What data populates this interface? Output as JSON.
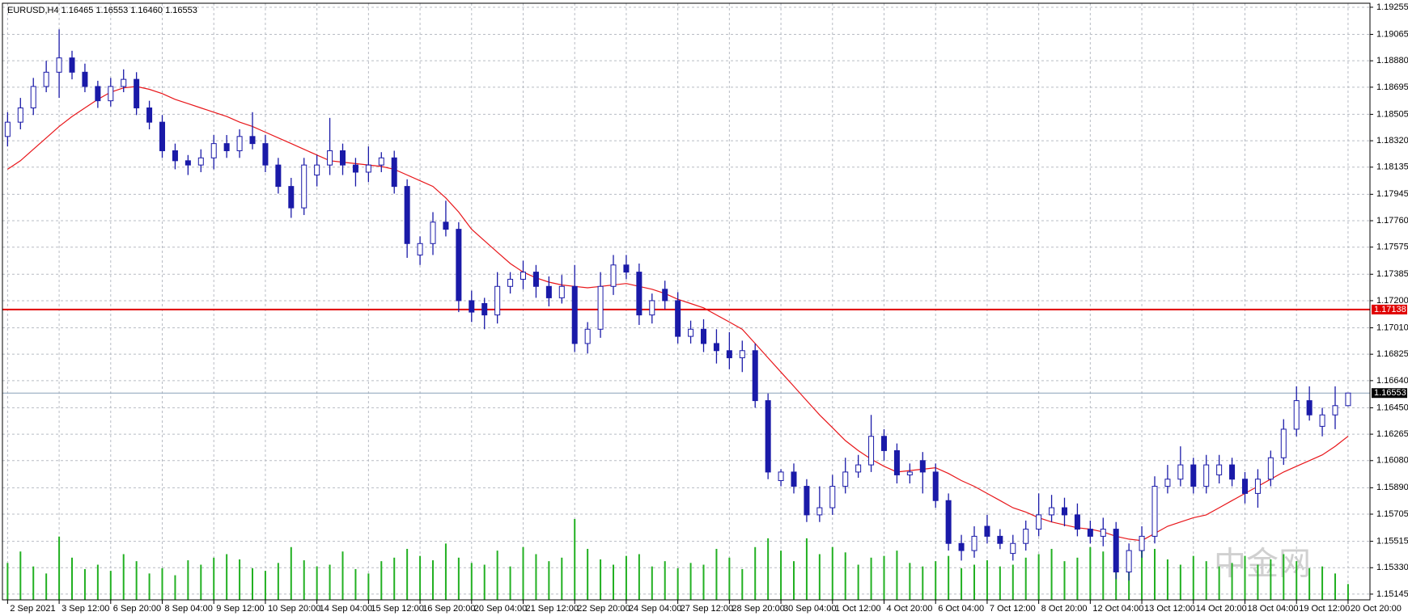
{
  "chart_data": {
    "type": "candlestick",
    "title": "EURUSD,H4  1.16465 1.16553 1.16460 1.16553",
    "watermark": "中金网",
    "color": "#1a1aa8",
    "up_fill": "#ffffff",
    "grid": true,
    "xlim": [
      -0.4,
      105.7
    ],
    "ylim": [
      1.15105,
      1.19283
    ],
    "yticks": [
      1.19255,
      1.19065,
      {
        "value": 1.1888,
        "label": "1.18880"
      },
      1.18695,
      1.18505,
      {
        "value": 1.1832,
        "label": "1.18320"
      },
      1.18135,
      1.17945,
      {
        "value": 1.1776,
        "label": "1.17760"
      },
      1.17575,
      1.17385,
      {
        "value": 1.172,
        "label": "1.17200"
      },
      {
        "value": 1.1701,
        "label": "1.17010"
      },
      1.16825,
      {
        "value": 1.1664,
        "label": "1.16640"
      },
      {
        "value": 1.1645,
        "label": "1.16450"
      },
      1.16265,
      {
        "value": 1.1608,
        "label": "1.16080"
      },
      {
        "value": 1.1589,
        "label": "1.15890"
      },
      1.15705,
      1.15515,
      {
        "value": 1.1533,
        "label": "1.15330"
      },
      1.15145
    ],
    "xticks": [
      {
        "value": 0,
        "label": "2 Sep 2021"
      },
      {
        "value": 4,
        "label": "3 Sep 12:00"
      },
      {
        "value": 8,
        "label": "6 Sep 20:00"
      },
      {
        "value": 12,
        "label": "8 Sep 04:00"
      },
      {
        "value": 16,
        "label": "9 Sep 12:00"
      },
      {
        "value": 20,
        "label": "10 Sep 20:00"
      },
      {
        "value": 24,
        "label": "14 Sep 04:00"
      },
      {
        "value": 28,
        "label": "15 Sep 12:00"
      },
      {
        "value": 32,
        "label": "16 Sep 20:00"
      },
      {
        "value": 36,
        "label": "20 Sep 04:00"
      },
      {
        "value": 40,
        "label": "21 Sep 12:00"
      },
      {
        "value": 44,
        "label": "22 Sep 20:00"
      },
      {
        "value": 48,
        "label": "24 Sep 04:00"
      },
      {
        "value": 52,
        "label": "27 Sep 12:00"
      },
      {
        "value": 56,
        "label": "28 Sep 20:00"
      },
      {
        "value": 60,
        "label": "30 Sep 04:00"
      },
      {
        "value": 64,
        "label": "1 Oct 12:00"
      },
      {
        "value": 68,
        "label": "4 Oct 20:00"
      },
      {
        "value": 72,
        "label": "6 Oct 04:00"
      },
      {
        "value": 76,
        "label": "7 Oct 12:00"
      },
      {
        "value": 80,
        "label": "8 Oct 20:00"
      },
      {
        "value": 84,
        "label": "12 Oct 04:00"
      },
      {
        "value": 88,
        "label": "13 Oct 12:00"
      },
      {
        "value": 92,
        "label": "14 Oct 20:00"
      },
      {
        "value": 96,
        "label": "18 Oct 04:00"
      },
      {
        "value": 100,
        "label": "19 Oct 12:00"
      },
      {
        "value": 104,
        "label": "20 Oct 20:00"
      }
    ],
    "open": [
      1.1835,
      1.1845,
      1.1855,
      1.187,
      1.188,
      1.189,
      1.188,
      1.187,
      1.186,
      1.187,
      1.1875,
      1.1855,
      1.1845,
      1.1825,
      1.1818,
      1.1815,
      1.182,
      1.183,
      1.1825,
      1.1835,
      1.183,
      1.1815,
      1.18,
      1.1785,
      1.1808,
      1.1815,
      1.1825,
      1.1815,
      1.181,
      1.1815,
      1.182,
      1.18,
      1.1752,
      1.176,
      1.1775,
      1.177,
      1.172,
      1.1718,
      1.171,
      1.173,
      1.1735,
      1.174,
      1.173,
      1.1722,
      1.173,
      1.169,
      1.17,
      1.173,
      1.1745,
      1.174,
      1.171,
      1.1728,
      1.172,
      1.1695,
      1.17,
      1.169,
      1.1685,
      1.168,
      1.1685,
      1.165,
      1.1594,
      1.16,
      1.159,
      1.157,
      1.1575,
      1.159,
      1.16,
      1.1605,
      1.1625,
      1.1615,
      1.1598,
      1.1608,
      1.16,
      1.158,
      1.155,
      1.1545,
      1.1562,
      1.1555,
      1.1543,
      1.155,
      1.156,
      1.157,
      1.1575,
      1.157,
      1.156,
      1.1555,
      1.156,
      1.153,
      1.1545,
      1.1555,
      1.159,
      1.1595,
      1.1605,
      1.159,
      1.1598,
      1.1605,
      1.1595,
      1.1585,
      1.1595,
      1.161,
      1.163,
      1.165,
      1.1632,
      1.164,
      1.16465
    ],
    "high": [
      1.1852,
      1.1862,
      1.1876,
      1.1888,
      1.191,
      1.1895,
      1.1886,
      1.1874,
      1.1876,
      1.1882,
      1.188,
      1.186,
      1.185,
      1.183,
      1.1822,
      1.1826,
      1.1836,
      1.1836,
      1.184,
      1.1852,
      1.1836,
      1.182,
      1.1806,
      1.182,
      1.1822,
      1.1848,
      1.183,
      1.182,
      1.1828,
      1.1824,
      1.1825,
      1.1805,
      1.1765,
      1.1782,
      1.179,
      1.1775,
      1.1727,
      1.1722,
      1.174,
      1.174,
      1.1748,
      1.1745,
      1.1737,
      1.1738,
      1.1745,
      1.1705,
      1.174,
      1.1752,
      1.1752,
      1.1746,
      1.1725,
      1.1734,
      1.1726,
      1.1706,
      1.1707,
      1.17,
      1.1698,
      1.1692,
      1.169,
      1.1655,
      1.1602,
      1.1606,
      1.1595,
      1.159,
      1.1598,
      1.161,
      1.1612,
      1.164,
      1.163,
      1.162,
      1.1606,
      1.1614,
      1.1606,
      1.1585,
      1.1556,
      1.1562,
      1.157,
      1.156,
      1.1556,
      1.1566,
      1.1585,
      1.1584,
      1.1582,
      1.1578,
      1.1566,
      1.1568,
      1.1565,
      1.155,
      1.1562,
      1.1597,
      1.1605,
      1.1618,
      1.161,
      1.1612,
      1.1612,
      1.161,
      1.16,
      1.1602,
      1.1615,
      1.1637,
      1.166,
      1.166,
      1.1645,
      1.166,
      1.16553
    ],
    "low": [
      1.1828,
      1.184,
      1.185,
      1.1866,
      1.1862,
      1.1875,
      1.1866,
      1.1855,
      1.1856,
      1.1866,
      1.185,
      1.184,
      1.182,
      1.1812,
      1.1808,
      1.181,
      1.1812,
      1.182,
      1.182,
      1.1826,
      1.181,
      1.1795,
      1.1778,
      1.178,
      1.18,
      1.1808,
      1.1808,
      1.18,
      1.1803,
      1.181,
      1.1795,
      1.175,
      1.1745,
      1.1752,
      1.1765,
      1.1712,
      1.1705,
      1.17,
      1.1704,
      1.1725,
      1.1728,
      1.1722,
      1.1716,
      1.1718,
      1.1684,
      1.1683,
      1.1694,
      1.1724,
      1.1735,
      1.1703,
      1.1704,
      1.1714,
      1.169,
      1.169,
      1.1684,
      1.1676,
      1.1672,
      1.167,
      1.1645,
      1.1595,
      1.159,
      1.1585,
      1.1565,
      1.1565,
      1.157,
      1.1585,
      1.1596,
      1.16,
      1.1608,
      1.1592,
      1.1592,
      1.1585,
      1.1575,
      1.1545,
      1.1538,
      1.154,
      1.155,
      1.1546,
      1.1538,
      1.1545,
      1.1555,
      1.1565,
      1.1562,
      1.1555,
      1.155,
      1.1548,
      1.1525,
      1.1524,
      1.154,
      1.155,
      1.1585,
      1.159,
      1.1585,
      1.1585,
      1.1592,
      1.159,
      1.1578,
      1.1575,
      1.159,
      1.1605,
      1.1625,
      1.1636,
      1.1625,
      1.163,
      1.1646
    ],
    "close": [
      1.1845,
      1.1855,
      1.187,
      1.188,
      1.189,
      1.188,
      1.187,
      1.186,
      1.187,
      1.1875,
      1.1855,
      1.1845,
      1.1825,
      1.1818,
      1.1815,
      1.182,
      1.183,
      1.1825,
      1.1835,
      1.183,
      1.1815,
      1.18,
      1.1785,
      1.1815,
      1.1815,
      1.1825,
      1.1815,
      1.181,
      1.1815,
      1.182,
      1.18,
      1.176,
      1.176,
      1.1775,
      1.177,
      1.172,
      1.1712,
      1.171,
      1.173,
      1.1735,
      1.174,
      1.173,
      1.1722,
      1.173,
      1.169,
      1.17,
      1.173,
      1.1745,
      1.174,
      1.171,
      1.172,
      1.172,
      1.1695,
      1.17,
      1.169,
      1.1685,
      1.168,
      1.1685,
      1.165,
      1.16,
      1.16,
      1.159,
      1.157,
      1.1575,
      1.159,
      1.16,
      1.1605,
      1.1625,
      1.1615,
      1.1598,
      1.16,
      1.16,
      1.158,
      1.155,
      1.1545,
      1.1555,
      1.1555,
      1.155,
      1.155,
      1.156,
      1.157,
      1.1575,
      1.157,
      1.156,
      1.1555,
      1.156,
      1.153,
      1.1545,
      1.1555,
      1.159,
      1.1595,
      1.1605,
      1.159,
      1.1605,
      1.1605,
      1.1595,
      1.1585,
      1.1595,
      1.161,
      1.163,
      1.165,
      1.164,
      1.164,
      1.16465,
      1.16553
    ],
    "ma_color": "#e8161a",
    "ma_values": [
      1.1812,
      1.1818,
      1.1826,
      1.1834,
      1.1842,
      1.1849,
      1.1855,
      1.1861,
      1.1866,
      1.1869,
      1.187,
      1.1868,
      1.1865,
      1.1861,
      1.1858,
      1.1855,
      1.1852,
      1.1849,
      1.1845,
      1.1842,
      1.1838,
      1.1834,
      1.183,
      1.1826,
      1.1822,
      1.1818,
      1.1817,
      1.1816,
      1.1815,
      1.1814,
      1.1812,
      1.1808,
      1.1804,
      1.18,
      1.1792,
      1.1782,
      1.177,
      1.1762,
      1.1754,
      1.1746,
      1.174,
      1.1736,
      1.1733,
      1.1731,
      1.173,
      1.1729,
      1.173,
      1.1731,
      1.1732,
      1.173,
      1.1728,
      1.1725,
      1.1721,
      1.1718,
      1.1715,
      1.171,
      1.1705,
      1.17,
      1.169,
      1.168,
      1.167,
      1.166,
      1.165,
      1.164,
      1.1631,
      1.1622,
      1.1615,
      1.1609,
      1.1604,
      1.16,
      1.1601,
      1.1602,
      1.1603,
      1.1599,
      1.1594,
      1.159,
      1.1585,
      1.158,
      1.1575,
      1.1572,
      1.1568,
      1.1565,
      1.1563,
      1.1561,
      1.156,
      1.1558,
      1.1555,
      1.1553,
      1.1552,
      1.1557,
      1.1562,
      1.1565,
      1.1568,
      1.157,
      1.1575,
      1.158,
      1.1585,
      1.159,
      1.1595,
      1.16,
      1.1604,
      1.1608,
      1.1612,
      1.1618,
      1.1625
    ],
    "volume_color": "#22b022",
    "volume_values": [
      42,
      55,
      38,
      30,
      72,
      48,
      35,
      40,
      33,
      52,
      44,
      30,
      36,
      28,
      45,
      40,
      48,
      52,
      46,
      36,
      33,
      42,
      60,
      45,
      38,
      40,
      55,
      35,
      30,
      44,
      48,
      58,
      50,
      45,
      64,
      48,
      42,
      40,
      56,
      38,
      60,
      52,
      44,
      48,
      92,
      58,
      46,
      40,
      50,
      52,
      38,
      44,
      36,
      42,
      40,
      58,
      48,
      35,
      60,
      70,
      56,
      44,
      70,
      52,
      60,
      54,
      40,
      48,
      50,
      56,
      42,
      38,
      44,
      50,
      36,
      40,
      45,
      38,
      40,
      48,
      52,
      58,
      44,
      48,
      60,
      55,
      62,
      48,
      65,
      58,
      46,
      40,
      50,
      44,
      38,
      42,
      50,
      40,
      46,
      52,
      44,
      36,
      38,
      30,
      18
    ],
    "hline": 1.17138,
    "hline_color": "#e00000",
    "bid": 1.16553,
    "bid_color": "#8aa0b8"
  }
}
